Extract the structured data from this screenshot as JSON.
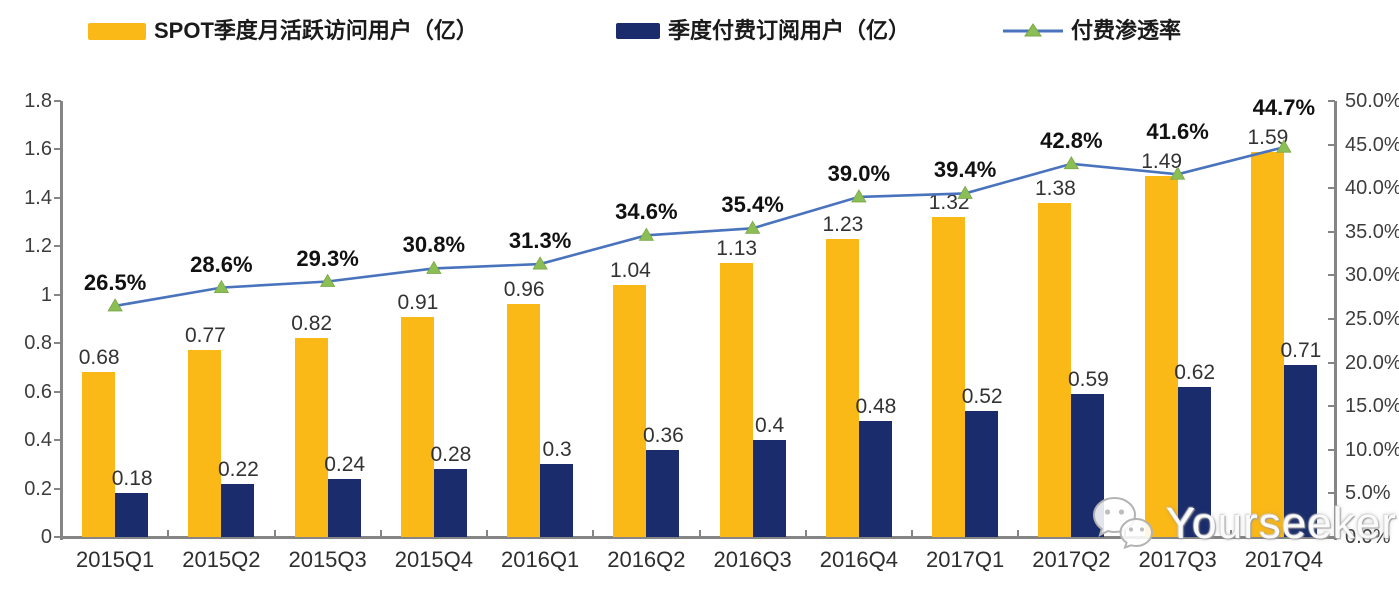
{
  "legend": [
    {
      "label": "SPOT季度月活跃访问用户（亿）",
      "type": "bar",
      "color": "#FBB917"
    },
    {
      "label": "季度付费订阅用户（亿）",
      "type": "bar",
      "color": "#1A2C6B"
    },
    {
      "label": "付费渗透率",
      "type": "line",
      "color": "#4A73BE",
      "marker": "triangle",
      "marker_color": "#8CBE56"
    }
  ],
  "chart_data": {
    "type": "bar+line combo",
    "categories": [
      "2015Q1",
      "2015Q2",
      "2015Q3",
      "2015Q4",
      "2016Q1",
      "2016Q2",
      "2016Q3",
      "2016Q4",
      "2017Q1",
      "2017Q2",
      "2017Q3",
      "2017Q4"
    ],
    "series": [
      {
        "name": "SPOT季度月活跃访问用户（亿）",
        "type": "bar",
        "axis": "left",
        "color": "#FBB917",
        "values": [
          0.68,
          0.77,
          0.82,
          0.91,
          0.96,
          1.04,
          1.13,
          1.23,
          1.32,
          1.38,
          1.49,
          1.59
        ],
        "labels": [
          "0.68",
          "0.77",
          "0.82",
          "0.91",
          "0.96",
          "1.04",
          "1.13",
          "1.23",
          "1.32",
          "1.38",
          "1.49",
          "1.59"
        ]
      },
      {
        "name": "季度付费订阅用户（亿）",
        "type": "bar",
        "axis": "left",
        "color": "#1A2C6B",
        "values": [
          0.18,
          0.22,
          0.24,
          0.28,
          0.3,
          0.36,
          0.4,
          0.48,
          0.52,
          0.59,
          0.62,
          0.71
        ],
        "labels": [
          "0.18",
          "0.22",
          "0.24",
          "0.28",
          "0.3",
          "0.36",
          "0.4",
          "0.48",
          "0.52",
          "0.59",
          "0.62",
          "0.71"
        ]
      },
      {
        "name": "付费渗透率",
        "type": "line",
        "axis": "right",
        "color": "#4A73BE",
        "marker_color": "#8CBE56",
        "values": [
          26.5,
          28.6,
          29.3,
          30.8,
          31.3,
          34.6,
          35.4,
          39.0,
          39.4,
          42.8,
          41.6,
          44.7
        ],
        "labels": [
          "26.5%",
          "28.6%",
          "29.3%",
          "30.8%",
          "31.3%",
          "34.6%",
          "35.4%",
          "39.0%",
          "39.4%",
          "42.8%",
          "41.6%",
          "44.7%"
        ]
      }
    ],
    "left_axis": {
      "min": 0,
      "max": 1.8,
      "step": 0.2,
      "ticks": [
        "0",
        "0.2",
        "0.4",
        "0.6",
        "0.8",
        "1",
        "1.2",
        "1.4",
        "1.6",
        "1.8"
      ]
    },
    "right_axis": {
      "min": 0,
      "max": 50,
      "step": 5,
      "ticks": [
        "0.0%",
        "5.0%",
        "10.0%",
        "15.0%",
        "20.0%",
        "25.0%",
        "30.0%",
        "35.0%",
        "40.0%",
        "45.0%",
        "50.0%"
      ]
    },
    "grid": "off",
    "legend_position": "top",
    "title": ""
  },
  "watermark": {
    "text": "Yourseeker",
    "icon": "wechat-icon"
  }
}
